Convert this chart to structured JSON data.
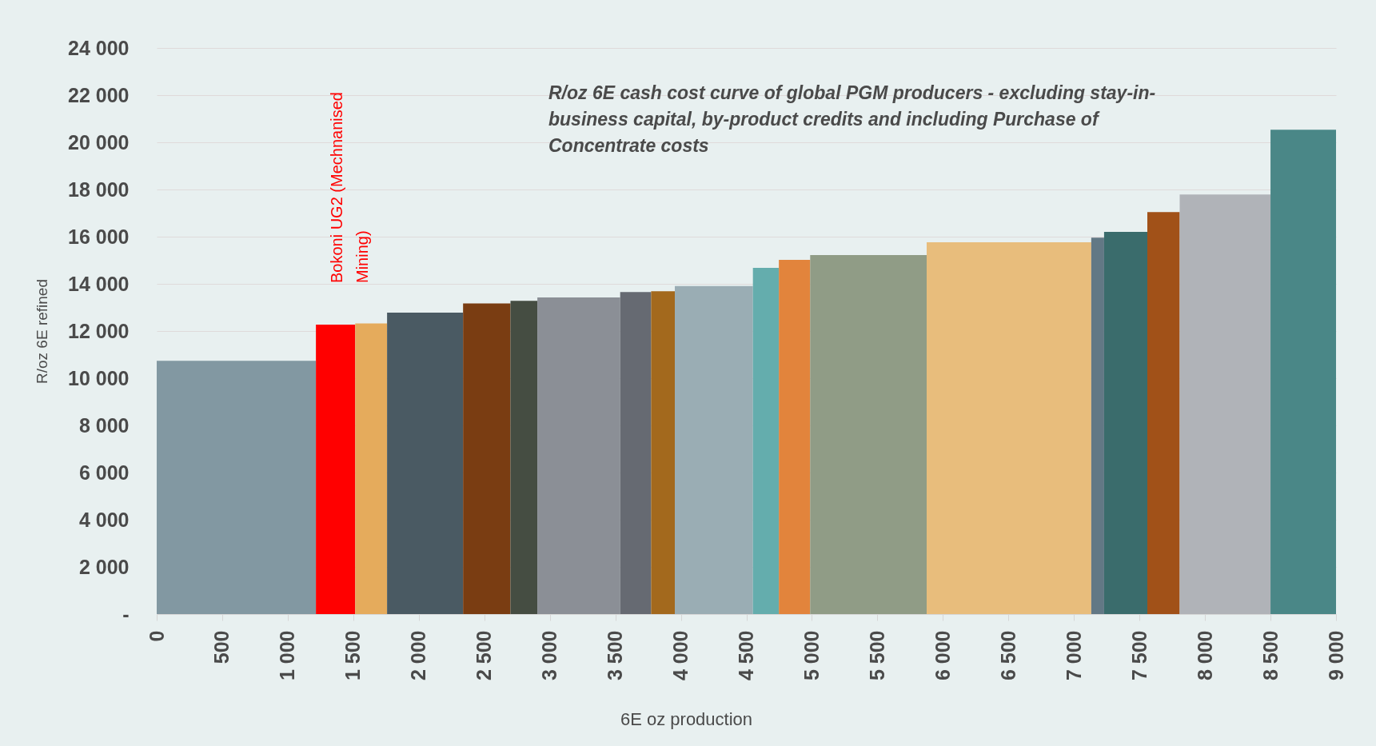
{
  "chart_data": {
    "type": "histogram",
    "title": "R/oz 6E cash cost curve of global PGM producers - excluding stay-in-business capital, by-product credits and including Purchase of Concentrate costs",
    "xlabel": "6E oz production",
    "ylabel": "R/oz 6E refined",
    "annotations": [
      {
        "text": "Bokoni UG2 (Mechnanised Mining)",
        "x": 1365,
        "y": 12270
      }
    ],
    "bins": [
      0,
      1215,
      1515,
      1758,
      2338,
      2700,
      2905,
      3537,
      3773,
      3954,
      4550,
      4748,
      4987,
      5876,
      7132,
      7230,
      7560,
      7807,
      8500,
      9000
    ],
    "values": [
      10740,
      12270,
      12320,
      12780,
      13170,
      13280,
      13420,
      13650,
      13690,
      13910,
      14680,
      15020,
      15220,
      15760,
      15960,
      16200,
      17040,
      17790,
      20530
    ],
    "colors": [
      "#8298a2",
      "#ff0000",
      "#e5ab5c",
      "#4a5a63",
      "#7a3d12",
      "#454d42",
      "#8b8f96",
      "#666a72",
      "#a3691d",
      "#9aadb4",
      "#64adad",
      "#e2843c",
      "#909c86",
      "#e8bd7c",
      "#627885",
      "#3a6c6c",
      "#a15118",
      "#b0b3b8",
      "#4a8787"
    ],
    "xlim": [
      0,
      9000
    ],
    "ylim": [
      0,
      24000
    ],
    "xticks": [
      0,
      500,
      {
        "value": 1000,
        "label": "1 000"
      },
      {
        "value": 1500,
        "label": "1 500"
      },
      {
        "value": 2000,
        "label": "2 000"
      },
      {
        "value": 2500,
        "label": "2 500"
      },
      {
        "value": 3000,
        "label": "3 000"
      },
      {
        "value": 3500,
        "label": "3 500"
      },
      {
        "value": 4000,
        "label": "4 000"
      },
      {
        "value": 4500,
        "label": "4 500"
      },
      {
        "value": 5000,
        "label": "5 000"
      },
      {
        "value": 5500,
        "label": "5 500"
      },
      {
        "value": 6000,
        "label": "6 000"
      },
      {
        "value": 6500,
        "label": "6 500"
      },
      {
        "value": 7000,
        "label": "7 000"
      },
      {
        "value": 7500,
        "label": "7 500"
      },
      {
        "value": 8000,
        "label": "8 000"
      },
      {
        "value": 8500,
        "label": "8 500"
      },
      {
        "value": 9000,
        "label": "9 000"
      }
    ],
    "yticks": [
      {
        "value": 0,
        "label": "-"
      },
      {
        "value": 2000,
        "label": "2 000"
      },
      {
        "value": 4000,
        "label": "4 000"
      },
      {
        "value": 6000,
        "label": "6 000"
      },
      {
        "value": 8000,
        "label": "8 000"
      },
      {
        "value": 10000,
        "label": "10 000"
      },
      {
        "value": 12000,
        "label": "12 000"
      },
      {
        "value": 14000,
        "label": "14 000"
      },
      {
        "value": 16000,
        "label": "16 000"
      },
      {
        "value": 18000,
        "label": "18 000"
      },
      {
        "value": 20000,
        "label": "20 000"
      },
      {
        "value": 22000,
        "label": "22 000"
      },
      {
        "value": 24000,
        "label": "24 000"
      }
    ],
    "grid": "y"
  }
}
